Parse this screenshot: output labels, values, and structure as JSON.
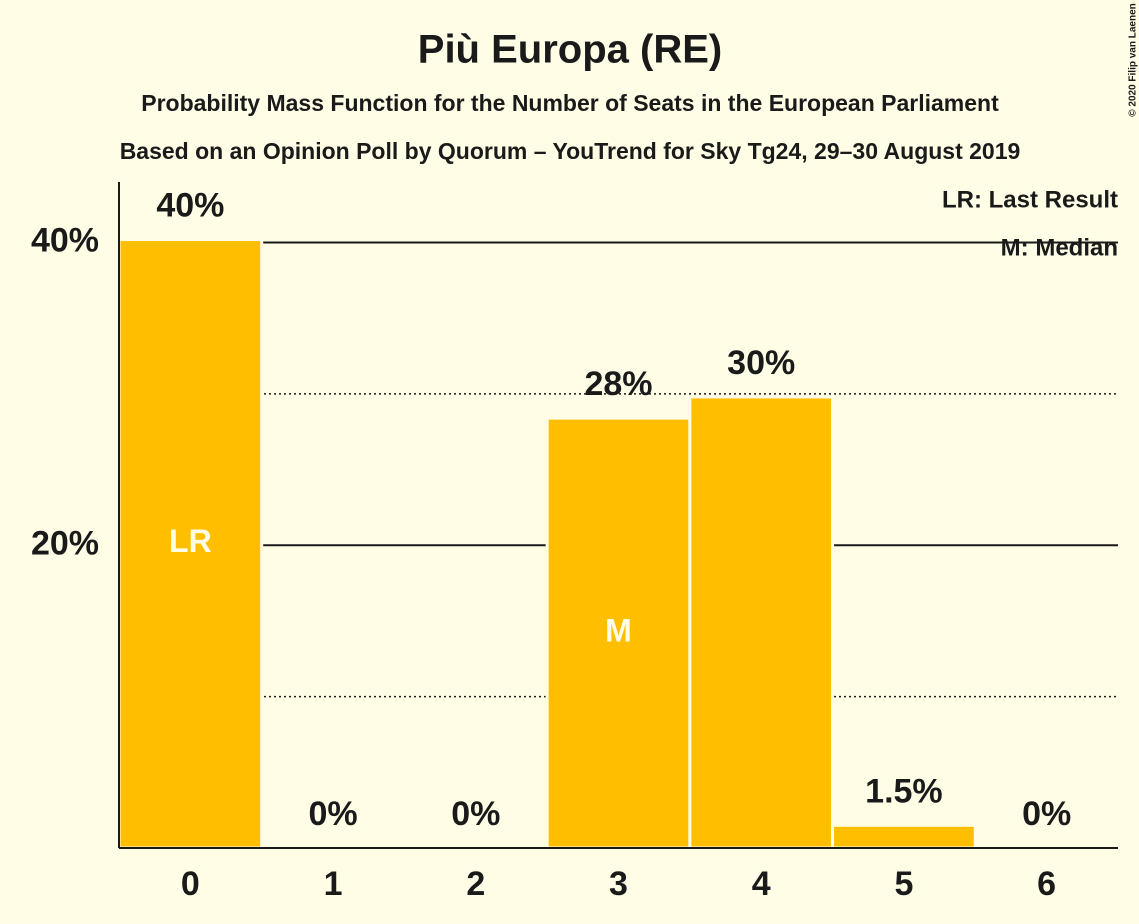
{
  "chart_data": {
    "type": "bar",
    "title": "Più Europa (RE)",
    "subtitle": "Probability Mass Function for the Number of Seats in the European Parliament",
    "subtitle2": "Based on an Opinion Poll by Quorum – YouTrend for Sky Tg24, 29–30 August 2019",
    "copyright": "© 2020 Filip van Laenen",
    "legend": [
      "LR: Last Result",
      "M: Median"
    ],
    "categories": [
      "0",
      "1",
      "2",
      "3",
      "4",
      "5",
      "6"
    ],
    "values": [
      40.2,
      0,
      0,
      28.4,
      29.8,
      1.5,
      0
    ],
    "value_labels": [
      "40%",
      "0%",
      "0%",
      "28%",
      "30%",
      "1.5%",
      "0%"
    ],
    "bar_labels": [
      "LR",
      null,
      null,
      "M",
      null,
      null,
      null
    ],
    "color": "#ffbf00",
    "ylim": [
      0,
      44
    ],
    "yticks": [
      {
        "value": 20,
        "label": "20%"
      },
      {
        "value": 40,
        "label": "40%"
      }
    ],
    "minor_gridlines": [
      10,
      30
    ],
    "grid": true
  }
}
